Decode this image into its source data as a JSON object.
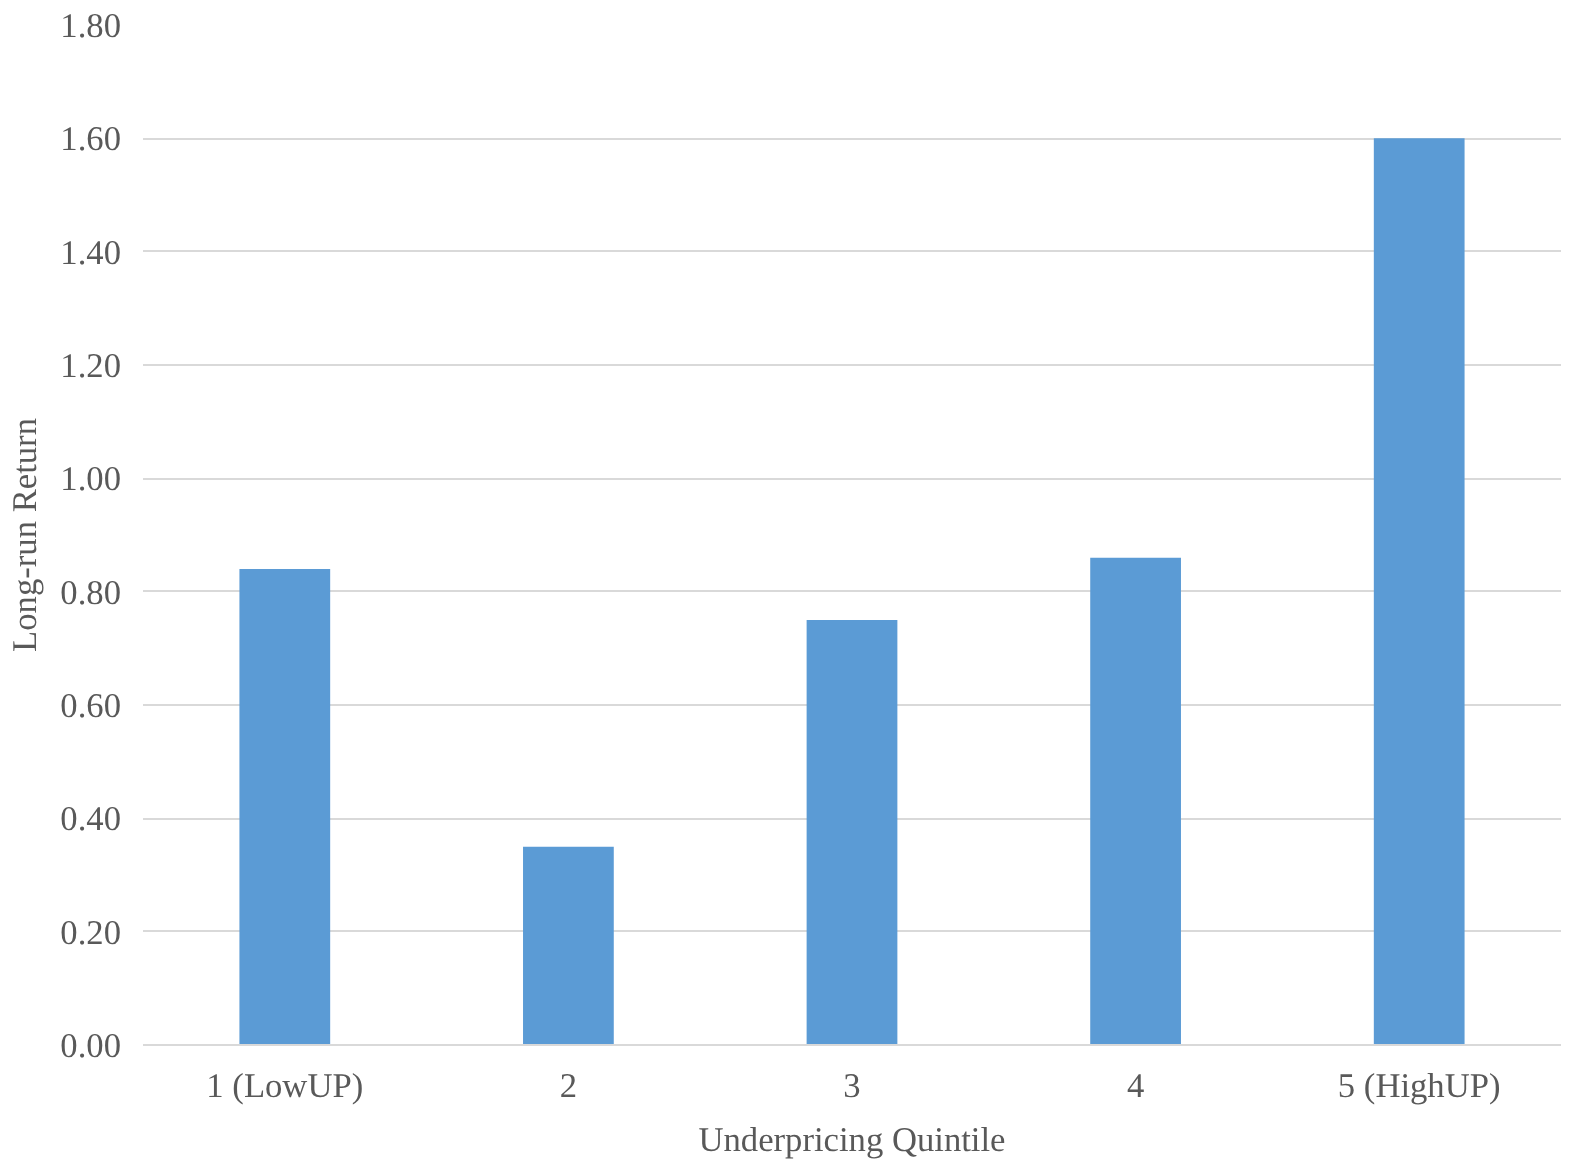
{
  "chart_data": {
    "type": "bar",
    "xlabel": "Underpricing Quintile",
    "ylabel": "Long-run Return",
    "categories": [
      "1 (LowUP)",
      "2",
      "3",
      "4",
      "5 (HighUP)"
    ],
    "values": [
      0.84,
      0.35,
      0.75,
      0.86,
      1.6
    ],
    "color": "#5b9bd5",
    "ylim": [
      0,
      1.8
    ],
    "yticks": [
      {
        "value": 0,
        "label": "0.00"
      },
      {
        "value": 0.2,
        "label": "0.20"
      },
      {
        "value": 0.4,
        "label": "0.40"
      },
      {
        "value": 0.6,
        "label": "0.60"
      },
      {
        "value": 0.8,
        "label": "0.80"
      },
      {
        "value": 1.0,
        "label": "1.00"
      },
      {
        "value": 1.2,
        "label": "1.20"
      },
      {
        "value": 1.4,
        "label": "1.40"
      },
      {
        "value": 1.6,
        "label": "1.60"
      },
      {
        "value": 1.8,
        "label": "1.80"
      }
    ],
    "grid": "y"
  }
}
